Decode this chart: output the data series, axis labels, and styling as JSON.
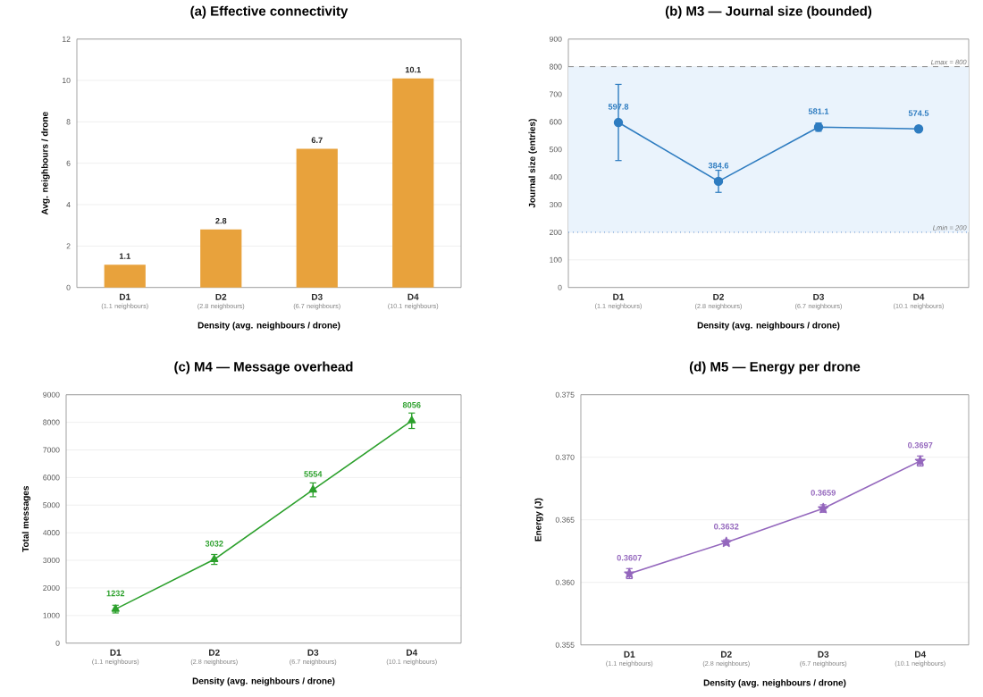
{
  "chart_data": [
    {
      "type": "bar",
      "title": "(a) Effective connectivity",
      "xlabel": "Density (avg. neighbours / drone)",
      "ylabel": "Avg. neighbours / drone",
      "categories": [
        "**D1** (1.1 neighbours)",
        "**D2** (2.8 neighbours)",
        "**D3** (6.7 neighbours)",
        "**D4** (10.1 neighbours)"
      ],
      "values": [
        1.1,
        2.8,
        6.7,
        10.1
      ],
      "color": "#e8a23c",
      "data_labels": true,
      "ylim": [
        0,
        12
      ],
      "yticks": [
        0,
        2,
        4,
        6,
        8,
        10,
        12
      ],
      "grid": "y"
    },
    {
      "type": "line",
      "title": "(b) M3 — Journal size (bounded)",
      "xlabel": "Density (avg. neighbours / drone)",
      "ylabel": "Journal size (entries)",
      "categories": [
        "**D1** (1.1 neighbours)",
        "**D2** (2.8 neighbours)",
        "**D3** (6.7 neighbours)",
        "**D4** (10.1 neighbours)"
      ],
      "values": [
        597.8,
        384.6,
        581.1,
        574.5
      ],
      "errors": [
        138,
        40,
        15,
        6
      ],
      "color": "#2e7cc0",
      "marker": "circle",
      "data_labels": true,
      "ylim": [
        0,
        900
      ],
      "yticks": [
        0,
        100,
        200,
        300,
        400,
        500,
        600,
        700,
        800,
        900
      ],
      "grid": "y",
      "ref_lines": [
        {
          "axis": "y",
          "value": 800,
          "label": "Lmax = 800",
          "line_style": "dashed",
          "color": "#888888"
        },
        {
          "axis": "y",
          "value": 200,
          "label": "Lmin = 200",
          "line_style": "dotted",
          "color": "#5b8fd0"
        }
      ],
      "bands": [
        {
          "axis": "y",
          "from": 200,
          "to": 800,
          "color": "#eaf3fc"
        }
      ]
    },
    {
      "type": "line",
      "title": "(c) M4 — Message overhead",
      "xlabel": "Density (avg. neighbours / drone)",
      "ylabel": "Total messages",
      "categories": [
        "**D1** (1.1 neighbours)",
        "**D2** (2.8 neighbours)",
        "**D3** (6.7 neighbours)",
        "**D4** (10.1 neighbours)"
      ],
      "values": [
        1232,
        3032,
        5554,
        8056
      ],
      "errors": [
        140,
        180,
        250,
        280
      ],
      "color": "#2ca02c",
      "marker": "triangle",
      "data_labels": true,
      "ylim": [
        0,
        9000
      ],
      "yticks": [
        0,
        1000,
        2000,
        3000,
        4000,
        5000,
        6000,
        7000,
        8000,
        9000
      ],
      "grid": "y"
    },
    {
      "type": "line",
      "title": "(d) M5 — Energy per drone",
      "xlabel": "Density (avg. neighbours / drone)",
      "ylabel": "Energy (J)",
      "categories": [
        "**D1** (1.1 neighbours)",
        "**D2** (2.8 neighbours)",
        "**D3** (6.7 neighbours)",
        "**D4** (10.1 neighbours)"
      ],
      "values": [
        0.3607,
        0.3632,
        0.3659,
        0.3697
      ],
      "errors": [
        0.0004,
        0.0002,
        0.0003,
        0.0004
      ],
      "color": "#9467bd",
      "marker": "star",
      "data_labels": true,
      "ylim": [
        0.355,
        0.375
      ],
      "yticks": [
        0.355,
        {
          "value": 0.36,
          "label": "0.360"
        },
        0.365,
        {
          "value": 0.37,
          "label": "0.370"
        },
        0.375
      ],
      "grid": "y"
    }
  ]
}
